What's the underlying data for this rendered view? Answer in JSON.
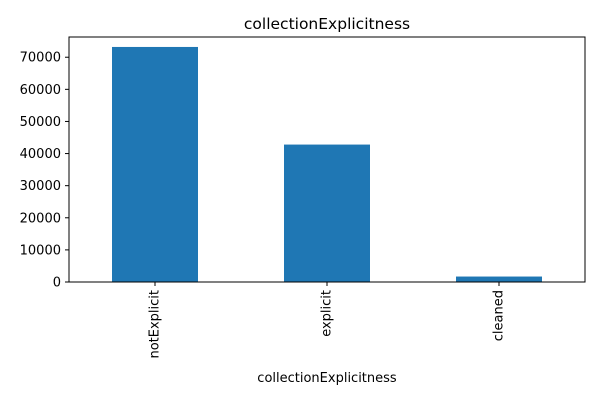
{
  "chart_data": {
    "type": "bar",
    "title": "collectionExplicitness",
    "xlabel": "collectionExplicitness",
    "ylabel": "",
    "categories": [
      "notExplicit",
      "explicit",
      "cleaned"
    ],
    "values": [
      73200,
      42800,
      1700
    ],
    "ylim": [
      0,
      76300
    ],
    "yticks": [
      0,
      10000,
      20000,
      30000,
      40000,
      50000,
      60000,
      70000
    ],
    "grid": false,
    "legend": "none",
    "bar_color": "#1f77b4"
  }
}
